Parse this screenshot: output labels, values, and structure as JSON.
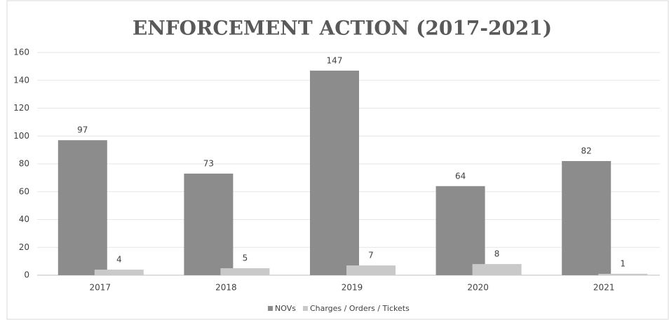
{
  "chart_data": {
    "type": "bar",
    "title": "ENFORCEMENT ACTION (2017-2021)",
    "categories": [
      "2017",
      "2018",
      "2019",
      "2020",
      "2021"
    ],
    "series": [
      {
        "name": "NOVs",
        "color": "#8c8c8c",
        "values": [
          97,
          73,
          147,
          64,
          82
        ]
      },
      {
        "name": "Charges / Orders / Tickets",
        "color": "#c9c9c9",
        "values": [
          4,
          5,
          7,
          8,
          1
        ]
      }
    ],
    "ylim": [
      0,
      160
    ],
    "yticks": [
      0,
      20,
      40,
      60,
      80,
      100,
      120,
      140,
      160
    ],
    "grid": true,
    "legend": "bottom"
  }
}
